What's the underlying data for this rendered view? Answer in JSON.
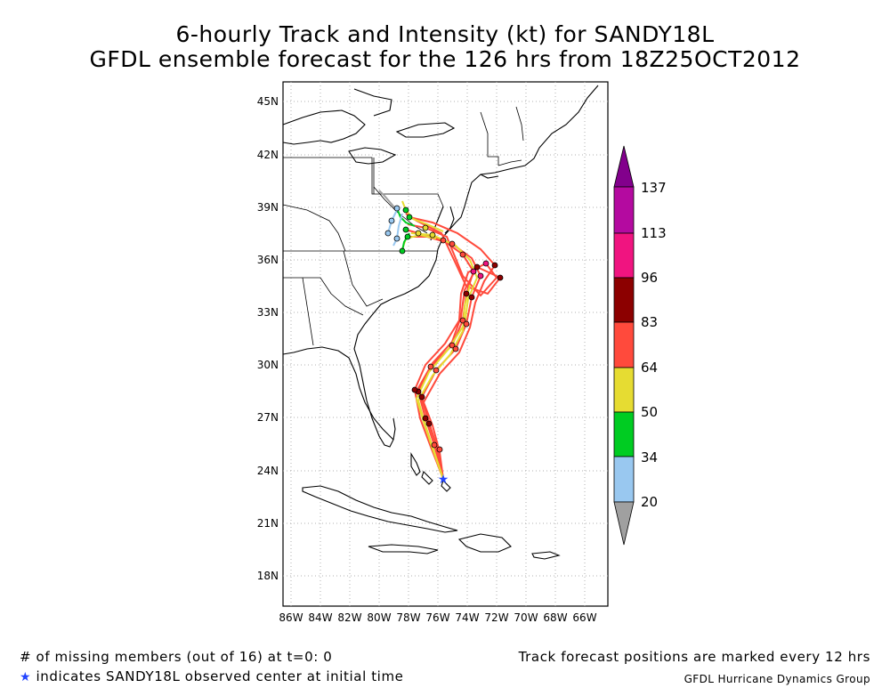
{
  "title_line1": "6-hourly Track and Intensity (kt) for SANDY18L",
  "title_line2": "GFDL ensemble forecast for the 126 hrs from 18Z25OCT2012",
  "lat_labels": [
    "45N",
    "42N",
    "39N",
    "36N",
    "33N",
    "30N",
    "27N",
    "24N",
    "21N",
    "18N"
  ],
  "lon_labels": [
    "86W",
    "84W",
    "82W",
    "80W",
    "78W",
    "76W",
    "74W",
    "72W",
    "70W",
    "68W",
    "66W"
  ],
  "colorbar": {
    "levels": [
      "137",
      "113",
      "96",
      "83",
      "64",
      "50",
      "34",
      "20"
    ],
    "colors": {
      "below_20": "#a0a0a0",
      "c20_34": "#99c8f0",
      "c34_50": "#00cc22",
      "c50_64": "#e6dc32",
      "c64_83": "#ff4a3c",
      "c83_96": "#8c0000",
      "c96_113": "#f01480",
      "c113_137": "#b40aa0",
      "above_137": "#82008c"
    }
  },
  "footer": {
    "missing": "# of missing members (out of 16) at t=0: 0",
    "star_symbol": "★",
    "initial": "indicates SANDY18L observed center at initial time",
    "interval": "Track forecast positions are marked every 12 hrs",
    "credit": "GFDL Hurricane Dynamics Group"
  }
}
